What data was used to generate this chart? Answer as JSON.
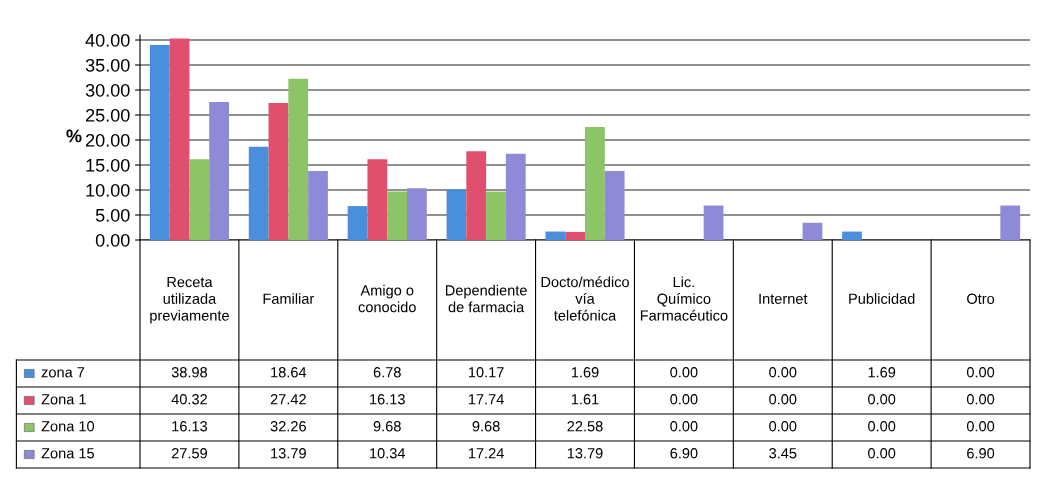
{
  "chart_data": {
    "type": "bar",
    "ylabel": "%",
    "categories": [
      "Receta utilizada previamente",
      "Familiar",
      "Amigo o conocido",
      "Dependiente de farmacia",
      "Docto/médico vía telefónica",
      "Lic. Químico Farmacéutico",
      "Internet",
      "Publicidad",
      "Otro"
    ],
    "series": [
      {
        "name": "zona 7",
        "color": "#4a8fdb",
        "values": [
          38.98,
          18.64,
          6.78,
          10.17,
          1.69,
          0.0,
          0.0,
          1.69,
          0.0
        ],
        "value_labels": [
          "38.98",
          "18.64",
          "6.78",
          "10.17",
          "1.69",
          "0.00",
          "0.00",
          "1.69",
          "0.00"
        ]
      },
      {
        "name": "Zona 1",
        "color": "#e0506e",
        "values": [
          40.32,
          27.42,
          16.13,
          17.74,
          1.61,
          0.0,
          0.0,
          0.0,
          0.0
        ],
        "value_labels": [
          "40.32",
          "27.42",
          "16.13",
          "17.74",
          "1.61",
          "0.00",
          "0.00",
          "0.00",
          "0.00"
        ]
      },
      {
        "name": "Zona 10",
        "color": "#8cc466",
        "values": [
          16.13,
          32.26,
          9.68,
          9.68,
          22.58,
          0.0,
          0.0,
          0.0,
          0.0
        ],
        "value_labels": [
          "16.13",
          "32.26",
          "9.68",
          "9.68",
          "22.58",
          "0.00",
          "0.00",
          "0.00",
          "0.00"
        ]
      },
      {
        "name": "Zona 15",
        "color": "#8f8ad8",
        "values": [
          27.59,
          13.79,
          10.34,
          17.24,
          13.79,
          6.9,
          3.45,
          0.0,
          6.9
        ],
        "value_labels": [
          "27.59",
          "13.79",
          "10.34",
          "17.24",
          "13.79",
          "6.90",
          "3.45",
          "0.00",
          "6.90"
        ]
      }
    ],
    "ylim": [
      0,
      41
    ],
    "yticks": [
      {
        "value": 0,
        "label": "0.00"
      },
      {
        "value": 5,
        "label": "5.00"
      },
      {
        "value": 10,
        "label": "10.00"
      },
      {
        "value": 15,
        "label": "15.00"
      },
      {
        "value": 20,
        "label": "20.00"
      },
      {
        "value": 25,
        "label": "25.00"
      },
      {
        "value": 30,
        "label": "30.00"
      },
      {
        "value": 35,
        "label": "35.00"
      },
      {
        "value": 40,
        "label": "40.00"
      }
    ],
    "grid": "y",
    "legend": "bottom left"
  }
}
